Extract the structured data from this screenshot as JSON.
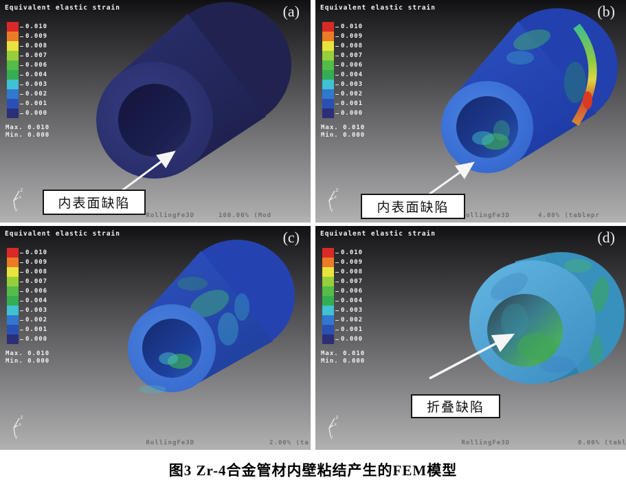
{
  "caption": "图3  Zr-4合金管材内壁粘结产生的FEM模型",
  "legend": {
    "title": "Equivalent elastic strain",
    "entries": [
      {
        "value": "0.010",
        "color": "#da2a27"
      },
      {
        "value": "0.009",
        "color": "#ec7b28"
      },
      {
        "value": "0.008",
        "color": "#e9e33e"
      },
      {
        "value": "0.007",
        "color": "#97cf3a"
      },
      {
        "value": "0.006",
        "color": "#55bc47"
      },
      {
        "value": "0.004",
        "color": "#35ad52"
      },
      {
        "value": "0.003",
        "color": "#41c1d4"
      },
      {
        "value": "0.002",
        "color": "#3178cf"
      },
      {
        "value": "0.001",
        "color": "#2b50b4"
      },
      {
        "value": "0.000",
        "color": "#2a2f78"
      }
    ],
    "max_label": "Max.",
    "max_value": "0.010",
    "min_label": "Min.",
    "min_value": "0.000"
  },
  "panels": [
    {
      "label": "(a)",
      "software": "RollingFe3D",
      "progress": "100.00% (Mod",
      "callout": "内表面缺陷"
    },
    {
      "label": "(b)",
      "software": "RollingFe3D",
      "progress": "4.00% (tablepr",
      "callout": "内表面缺陷"
    },
    {
      "label": "(c)",
      "software": "RollingFe3D",
      "progress": "2.00% (ta",
      "callout": ""
    },
    {
      "label": "(d)",
      "software": "RollingFe3D",
      "progress": "0.00% (tabl",
      "callout": "折叠缺陷"
    }
  ],
  "axis_triad": {
    "z": "z",
    "x": "x",
    "y": "y"
  }
}
